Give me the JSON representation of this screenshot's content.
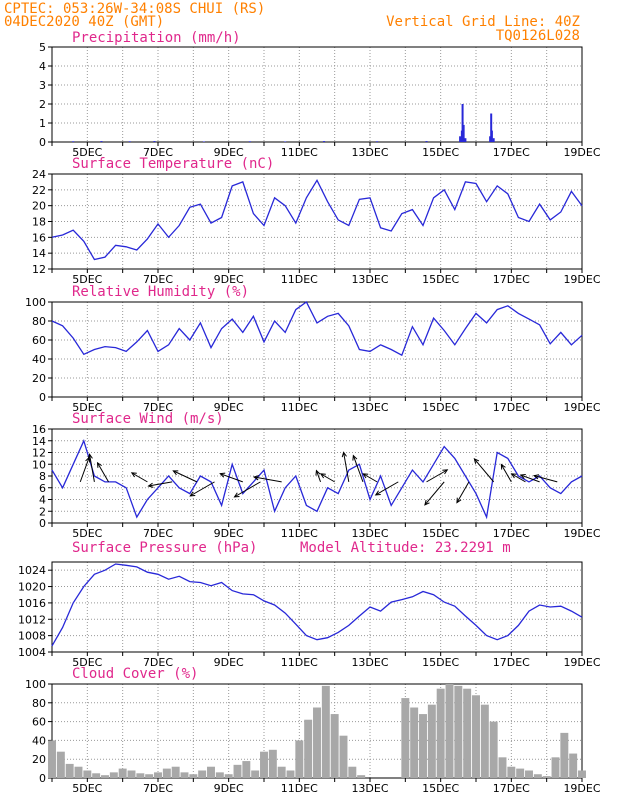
{
  "header": {
    "line1": "CPTEC:   053:26W-34:08S   CHUI (RS)",
    "line2": "04DEC2020 40Z (GMT)",
    "grid_note": "Vertical Grid Line: 40Z",
    "code": "TQ0126L028"
  },
  "colors": {
    "header": "#ff8000",
    "title": "#e0288c",
    "line": "#2828d8",
    "bar": "#a8a8a8",
    "arrow": "#000000"
  },
  "x_labels": [
    "5DEC",
    "7DEC",
    "9DEC",
    "11DEC",
    "13DEC",
    "15DEC",
    "17DEC",
    "19DEC"
  ],
  "chart_data": [
    {
      "type": "bar",
      "title": "Precipitation (mm/h)",
      "ylim": [
        0,
        5
      ],
      "yticks": [
        0,
        1,
        2,
        3,
        4,
        5
      ],
      "x": [
        4.6,
        5.4,
        6.2,
        6.9,
        8.3,
        9.6,
        10.6,
        11.7,
        13.2,
        14.6,
        15.55,
        15.6,
        15.62,
        15.65,
        15.7,
        16.4,
        16.43,
        16.45,
        16.5
      ],
      "values": [
        0.04,
        0.05,
        0.04,
        0.05,
        0.03,
        0.04,
        0.03,
        0.05,
        0.04,
        0.05,
        0.3,
        0.6,
        2.0,
        0.9,
        0.2,
        0.3,
        1.5,
        0.6,
        0.2
      ]
    },
    {
      "type": "line",
      "title": "Surface Temperature (nC)",
      "ylim": [
        12,
        24
      ],
      "yticks": [
        12,
        14,
        16,
        18,
        20,
        22,
        24
      ],
      "x": [
        4.0,
        4.3,
        4.6,
        4.9,
        5.2,
        5.5,
        5.8,
        6.1,
        6.4,
        6.7,
        7.0,
        7.3,
        7.6,
        7.9,
        8.2,
        8.5,
        8.8,
        9.1,
        9.4,
        9.7,
        10.0,
        10.3,
        10.6,
        10.9,
        11.2,
        11.5,
        11.8,
        12.1,
        12.4,
        12.7,
        13.0,
        13.3,
        13.6,
        13.9,
        14.2,
        14.5,
        14.8,
        15.1,
        15.4,
        15.7,
        16.0,
        16.3,
        16.6,
        16.9,
        17.2,
        17.5,
        17.8,
        18.1,
        18.4,
        18.7,
        19.0
      ],
      "values": [
        16.0,
        16.3,
        16.9,
        15.5,
        13.2,
        13.5,
        15.0,
        14.8,
        14.4,
        15.8,
        17.7,
        16.0,
        17.5,
        19.8,
        20.2,
        17.8,
        18.5,
        22.5,
        23.0,
        19.0,
        17.5,
        21.0,
        20.0,
        17.8,
        21.0,
        23.2,
        20.5,
        18.2,
        17.5,
        20.8,
        21.0,
        17.2,
        16.8,
        19.0,
        19.5,
        17.5,
        21.0,
        22.0,
        19.5,
        23.0,
        22.8,
        20.5,
        22.5,
        21.5,
        18.5,
        18.0,
        20.2,
        18.2,
        19.2,
        21.8,
        20.0
      ]
    },
    {
      "type": "line",
      "title": "Relative Humidity (%)",
      "ylim": [
        0,
        100
      ],
      "yticks": [
        0,
        20,
        40,
        60,
        80,
        100
      ],
      "x": [
        4.0,
        4.3,
        4.6,
        4.9,
        5.2,
        5.5,
        5.8,
        6.1,
        6.4,
        6.7,
        7.0,
        7.3,
        7.6,
        7.9,
        8.2,
        8.5,
        8.8,
        9.1,
        9.4,
        9.7,
        10.0,
        10.3,
        10.6,
        10.9,
        11.2,
        11.5,
        11.8,
        12.1,
        12.4,
        12.7,
        13.0,
        13.3,
        13.6,
        13.9,
        14.2,
        14.5,
        14.8,
        15.1,
        15.4,
        15.7,
        16.0,
        16.3,
        16.6,
        16.9,
        17.2,
        17.5,
        17.8,
        18.1,
        18.4,
        18.7,
        19.0
      ],
      "values": [
        80,
        75,
        62,
        45,
        50,
        53,
        52,
        48,
        58,
        70,
        48,
        55,
        72,
        60,
        78,
        52,
        72,
        82,
        68,
        85,
        58,
        80,
        68,
        92,
        100,
        78,
        85,
        88,
        75,
        50,
        48,
        55,
        50,
        44,
        74,
        55,
        83,
        70,
        55,
        72,
        88,
        78,
        92,
        96,
        88,
        82,
        76,
        56,
        68,
        55,
        65
      ]
    },
    {
      "type": "line",
      "title": "Surface Wind (m/s)",
      "ylim": [
        0,
        16
      ],
      "yticks": [
        0,
        2,
        4,
        6,
        8,
        10,
        12,
        14,
        16
      ],
      "x": [
        4.0,
        4.3,
        4.6,
        4.9,
        5.2,
        5.5,
        5.8,
        6.1,
        6.4,
        6.7,
        7.0,
        7.3,
        7.6,
        7.9,
        8.2,
        8.5,
        8.8,
        9.1,
        9.4,
        9.7,
        10.0,
        10.3,
        10.6,
        10.9,
        11.2,
        11.5,
        11.8,
        12.1,
        12.4,
        12.7,
        13.0,
        13.3,
        13.6,
        13.9,
        14.2,
        14.5,
        14.8,
        15.1,
        15.4,
        15.7,
        16.0,
        16.3,
        16.6,
        16.9,
        17.2,
        17.5,
        17.8,
        18.1,
        18.4,
        18.7,
        19.0
      ],
      "values": [
        9,
        6,
        10,
        14,
        8,
        7,
        7,
        6,
        1,
        4,
        6,
        8,
        6,
        5,
        8,
        7,
        3,
        10,
        5,
        7,
        9,
        2,
        6,
        8,
        3,
        2,
        6,
        5,
        9,
        10,
        4,
        8,
        3,
        6,
        9,
        7,
        10,
        13,
        11,
        8,
        5,
        1,
        12,
        11,
        8,
        7,
        8,
        6,
        5,
        7,
        8
      ],
      "arrows": [
        {
          "x": 4.8,
          "dir": 20,
          "len": 26
        },
        {
          "x": 5.2,
          "dir": -10,
          "len": 28
        },
        {
          "x": 5.6,
          "dir": -30,
          "len": 22
        },
        {
          "x": 6.7,
          "dir": -60,
          "len": 18
        },
        {
          "x": 7.4,
          "dir": -100,
          "len": 24
        },
        {
          "x": 8.1,
          "dir": -65,
          "len": 26
        },
        {
          "x": 8.6,
          "dir": -120,
          "len": 28
        },
        {
          "x": 9.4,
          "dir": -70,
          "len": 24
        },
        {
          "x": 9.9,
          "dir": -120,
          "len": 30
        },
        {
          "x": 10.5,
          "dir": -80,
          "len": 28
        },
        {
          "x": 11.6,
          "dir": -20,
          "len": 12
        },
        {
          "x": 12.0,
          "dir": -60,
          "len": 16
        },
        {
          "x": 12.4,
          "dir": -10,
          "len": 30
        },
        {
          "x": 12.8,
          "dir": -20,
          "len": 28
        },
        {
          "x": 13.2,
          "dir": -60,
          "len": 16
        },
        {
          "x": 13.8,
          "dir": -120,
          "len": 26
        },
        {
          "x": 14.6,
          "dir": 60,
          "len": 24
        },
        {
          "x": 15.1,
          "dir": -140,
          "len": 30
        },
        {
          "x": 15.8,
          "dir": -150,
          "len": 24
        },
        {
          "x": 16.5,
          "dir": -40,
          "len": 30
        },
        {
          "x": 17.0,
          "dir": -30,
          "len": 20
        },
        {
          "x": 17.4,
          "dir": -60,
          "len": 16
        },
        {
          "x": 17.8,
          "dir": -70,
          "len": 20
        },
        {
          "x": 18.3,
          "dir": -75,
          "len": 24
        }
      ]
    },
    {
      "type": "line",
      "title": "Surface Pressure (hPa)",
      "subtitle": "Model Altitude: 23.2291 m",
      "ylim": [
        1004,
        1026
      ],
      "yticks": [
        1004,
        1008,
        1012,
        1016,
        1020,
        1024
      ],
      "x": [
        4.0,
        4.3,
        4.6,
        4.9,
        5.2,
        5.5,
        5.8,
        6.1,
        6.4,
        6.7,
        7.0,
        7.3,
        7.6,
        7.9,
        8.2,
        8.5,
        8.8,
        9.1,
        9.4,
        9.7,
        10.0,
        10.3,
        10.6,
        10.9,
        11.2,
        11.5,
        11.8,
        12.1,
        12.4,
        12.7,
        13.0,
        13.3,
        13.6,
        13.9,
        14.2,
        14.5,
        14.8,
        15.1,
        15.4,
        15.7,
        16.0,
        16.3,
        16.6,
        16.9,
        17.2,
        17.5,
        17.8,
        18.1,
        18.4,
        18.7,
        19.0
      ],
      "values": [
        1005.5,
        1010,
        1016,
        1020,
        1023,
        1024,
        1025.5,
        1025.2,
        1024.8,
        1023.5,
        1023.0,
        1021.8,
        1022.5,
        1021.2,
        1021.0,
        1020.2,
        1021.0,
        1019.0,
        1018.2,
        1018.0,
        1016.5,
        1015.5,
        1013.5,
        1010.8,
        1008.0,
        1007.0,
        1007.5,
        1008.8,
        1010.5,
        1012.8,
        1015.0,
        1014.0,
        1016.2,
        1016.8,
        1017.5,
        1018.8,
        1018.0,
        1016.2,
        1015.2,
        1012.8,
        1010.5,
        1008.0,
        1007.0,
        1008.0,
        1010.5,
        1014.0,
        1015.5,
        1015.0,
        1015.2,
        1014.0,
        1012.5
      ]
    },
    {
      "type": "bar",
      "title": "Cloud Cover (%)",
      "ylim": [
        0,
        100
      ],
      "yticks": [
        0,
        20,
        40,
        60,
        80,
        100
      ],
      "x": [
        4.0,
        4.25,
        4.5,
        4.75,
        5.0,
        5.25,
        5.5,
        5.75,
        6.0,
        6.25,
        6.5,
        6.75,
        7.0,
        7.25,
        7.5,
        7.75,
        8.0,
        8.25,
        8.5,
        8.75,
        9.0,
        9.25,
        9.5,
        9.75,
        10.0,
        10.25,
        10.5,
        10.75,
        11.0,
        11.25,
        11.5,
        11.75,
        12.0,
        12.25,
        12.5,
        12.75,
        13.0,
        13.25,
        13.5,
        13.75,
        14.0,
        14.25,
        14.5,
        14.75,
        15.0,
        15.25,
        15.5,
        15.75,
        16.0,
        16.25,
        16.5,
        16.75,
        17.0,
        17.25,
        17.5,
        17.75,
        18.0,
        18.25,
        18.5,
        18.75,
        19.0
      ],
      "values": [
        40,
        28,
        15,
        12,
        8,
        5,
        3,
        6,
        10,
        8,
        5,
        4,
        6,
        10,
        12,
        6,
        4,
        8,
        12,
        6,
        4,
        14,
        18,
        8,
        28,
        30,
        12,
        8,
        40,
        62,
        75,
        98,
        68,
        45,
        12,
        3,
        0,
        0,
        0,
        0,
        85,
        75,
        68,
        78,
        95,
        100,
        98,
        95,
        88,
        78,
        60,
        22,
        12,
        10,
        8,
        4,
        2,
        22,
        48,
        26,
        8
      ]
    }
  ]
}
